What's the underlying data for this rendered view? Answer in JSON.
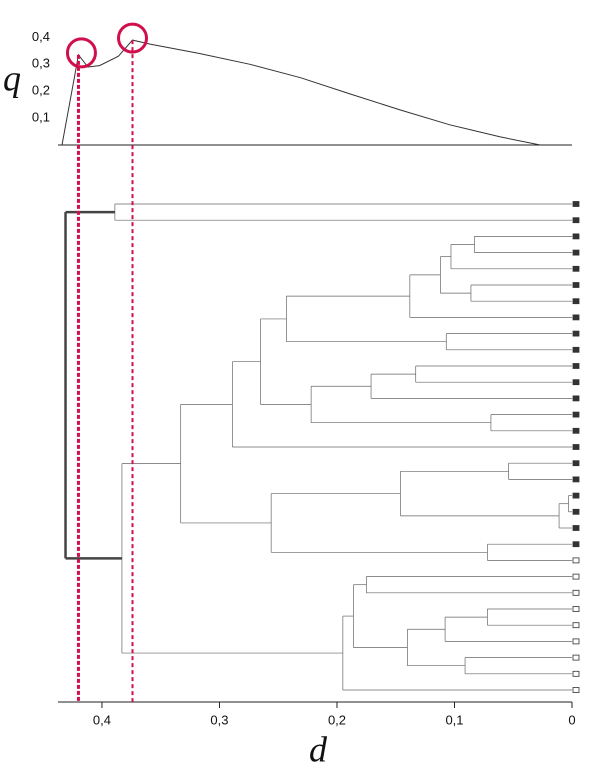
{
  "chart_data": [
    {
      "type": "line",
      "ylabel": "q",
      "x": [
        0.434,
        0.42,
        0.412,
        0.402,
        0.386,
        0.374,
        0.359,
        0.317,
        0.274,
        0.231,
        0.189,
        0.146,
        0.104,
        0.061,
        0.027
      ],
      "values": [
        0,
        0.335,
        0.29,
        0.295,
        0.33,
        0.39,
        0.375,
        0.34,
        0.3,
        0.25,
        0.19,
        0.13,
        0.075,
        0.03,
        0
      ],
      "color": "#333333",
      "xlim": [
        0.434,
        0
      ],
      "ylim": [
        0,
        0.42
      ],
      "yticks": [
        {
          "value": 0.1,
          "label": "0,1"
        },
        {
          "value": 0.2,
          "label": "0,2"
        },
        {
          "value": 0.3,
          "label": "0,3"
        },
        {
          "value": 0.4,
          "label": "0,4"
        }
      ],
      "highlights": [
        0.42,
        0.374
      ],
      "highlight_color": "#d0104c"
    },
    {
      "type": "dendrogram",
      "xlabel": "d",
      "xlim": [
        0.434,
        0
      ],
      "xticks": [
        {
          "value": 0.4,
          "label": "0,4"
        },
        {
          "value": 0.3,
          "label": "0,3"
        },
        {
          "value": 0.2,
          "label": "0,2"
        },
        {
          "value": 0.1,
          "label": "0,1"
        },
        0
      ],
      "color": "#666666",
      "tree": {
        "height": 0.431,
        "children": [
          {
            "height": 0.389,
            "children": [
              "filled",
              "filled"
            ]
          },
          {
            "height": 0.383,
            "children": [
              {
                "height": 0.333,
                "children": [
                  {
                    "height": 0.289,
                    "children": [
                      {
                        "height": 0.265,
                        "children": [
                          {
                            "height": 0.243,
                            "children": [
                              {
                                "height": 0.138,
                                "children": [
                                  {
                                    "height": 0.112,
                                    "children": [
                                      {
                                        "height": 0.103,
                                        "children": [
                                          {
                                            "height": 0.083,
                                            "children": [
                                              "filled",
                                              "filled"
                                            ]
                                          },
                                          "filled"
                                        ]
                                      },
                                      {
                                        "height": 0.086,
                                        "children": [
                                          "filled",
                                          "filled"
                                        ]
                                      }
                                    ]
                                  },
                                  "filled"
                                ]
                              },
                              {
                                "height": 0.107,
                                "children": [
                                  "filled",
                                  "filled"
                                ]
                              }
                            ]
                          },
                          {
                            "height": 0.222,
                            "children": [
                              {
                                "height": 0.171,
                                "children": [
                                  {
                                    "height": 0.133,
                                    "children": [
                                      "filled",
                                      "filled"
                                    ]
                                  },
                                  "filled"
                                ]
                              },
                              {
                                "height": 0.069,
                                "children": [
                                  "filled",
                                  "filled"
                                ]
                              }
                            ]
                          }
                        ]
                      },
                      "filled"
                    ]
                  },
                  {
                    "height": 0.256,
                    "children": [
                      {
                        "height": 0.146,
                        "children": [
                          {
                            "height": 0.054,
                            "children": [
                              "filled",
                              "filled"
                            ]
                          },
                          {
                            "height": 0.011,
                            "children": [
                              {
                                "height": 0.003,
                                "children": [
                                  "filled",
                                  "filled"
                                ]
                              },
                              "filled"
                            ]
                          }
                        ]
                      },
                      {
                        "height": 0.072,
                        "children": [
                          "filled",
                          "hollow"
                        ]
                      }
                    ]
                  }
                ]
              },
              {
                "height": 0.195,
                "children": [
                  {
                    "height": 0.186,
                    "children": [
                      {
                        "height": 0.175,
                        "children": [
                          "hollow",
                          "hollow"
                        ]
                      },
                      {
                        "height": 0.14,
                        "children": [
                          {
                            "height": 0.108,
                            "children": [
                              {
                                "height": 0.072,
                                "children": [
                                  "hollow",
                                  "hollow"
                                ]
                              },
                              "hollow"
                            ]
                          },
                          {
                            "height": 0.091,
                            "children": [
                              "hollow",
                              "hollow"
                            ]
                          }
                        ]
                      }
                    ]
                  },
                  "hollow"
                ]
              }
            ]
          }
        ]
      }
    }
  ]
}
